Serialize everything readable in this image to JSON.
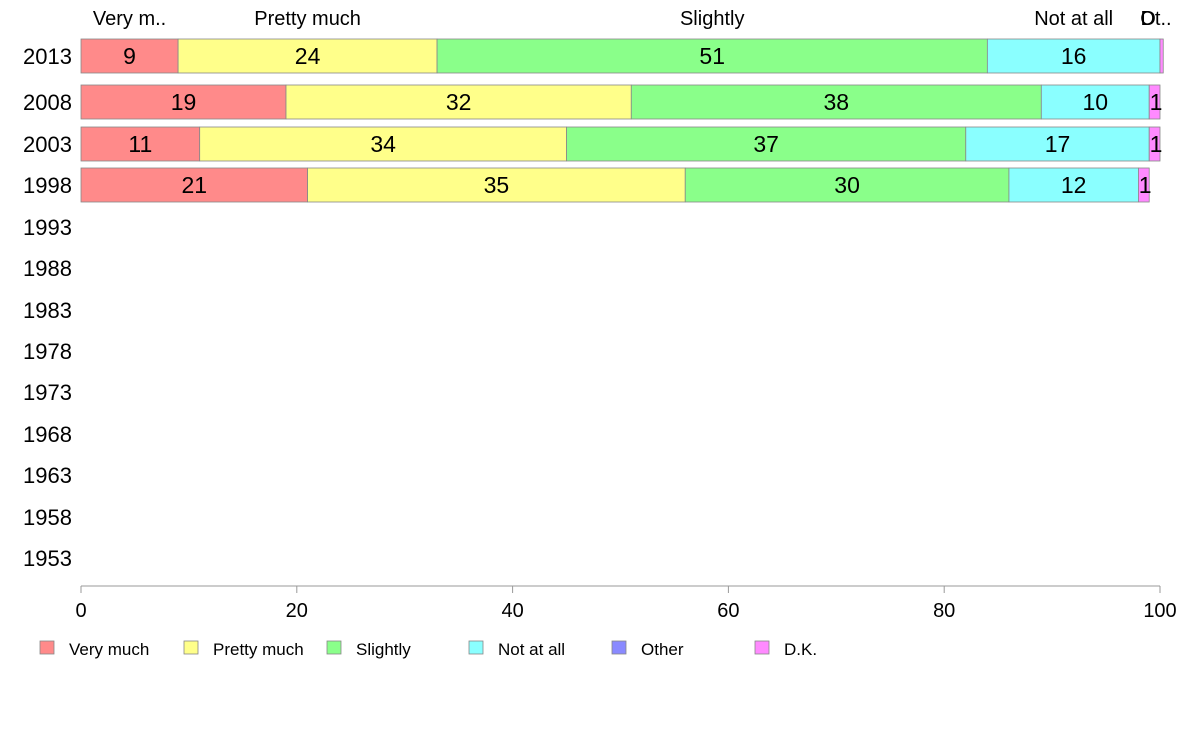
{
  "chart_data": {
    "type": "bar",
    "orientation": "horizontal",
    "stacked": true,
    "categories": [
      "2013",
      "2008",
      "2003",
      "1998",
      "1993",
      "1988",
      "1983",
      "1978",
      "1973",
      "1968",
      "1963",
      "1958",
      "1953"
    ],
    "series": [
      {
        "name": "Very much",
        "color": "#ff8a8a",
        "values": [
          9,
          19,
          11,
          21,
          null,
          null,
          null,
          null,
          null,
          null,
          null,
          null,
          null
        ]
      },
      {
        "name": "Pretty much",
        "color": "#ffff8a",
        "values": [
          24,
          32,
          34,
          35,
          null,
          null,
          null,
          null,
          null,
          null,
          null,
          null,
          null
        ]
      },
      {
        "name": "Slightly",
        "color": "#8aff8a",
        "values": [
          51,
          38,
          37,
          30,
          null,
          null,
          null,
          null,
          null,
          null,
          null,
          null,
          null
        ]
      },
      {
        "name": "Not at all",
        "color": "#8affff",
        "values": [
          16,
          10,
          17,
          12,
          null,
          null,
          null,
          null,
          null,
          null,
          null,
          null,
          null
        ]
      },
      {
        "name": "Other",
        "color": "#8a8aff",
        "values": [
          0,
          0,
          0,
          0,
          null,
          null,
          null,
          null,
          null,
          null,
          null,
          null,
          null
        ]
      },
      {
        "name": "D.K.",
        "color": "#ff8aff",
        "values": [
          0.3,
          1,
          1,
          1,
          null,
          null,
          null,
          null,
          null,
          null,
          null,
          null,
          null
        ]
      }
    ],
    "data_labels": [
      [
        "9",
        "24",
        "51",
        "16",
        "",
        ""
      ],
      [
        "19",
        "32",
        "38",
        "10",
        "",
        "1"
      ],
      [
        "11",
        "34",
        "37",
        "17",
        "",
        "1"
      ],
      [
        "21",
        "35",
        "30",
        "12",
        "",
        "1"
      ]
    ],
    "top_labels": [
      "Very m..",
      "Pretty much",
      "Slightly",
      "Not at all",
      "O",
      "Dt.."
    ],
    "x_ticks": [
      "0",
      "20",
      "40",
      "60",
      "80",
      "100"
    ],
    "xlim": [
      0,
      100
    ],
    "grid": false,
    "legend_position": "bottom-left"
  }
}
